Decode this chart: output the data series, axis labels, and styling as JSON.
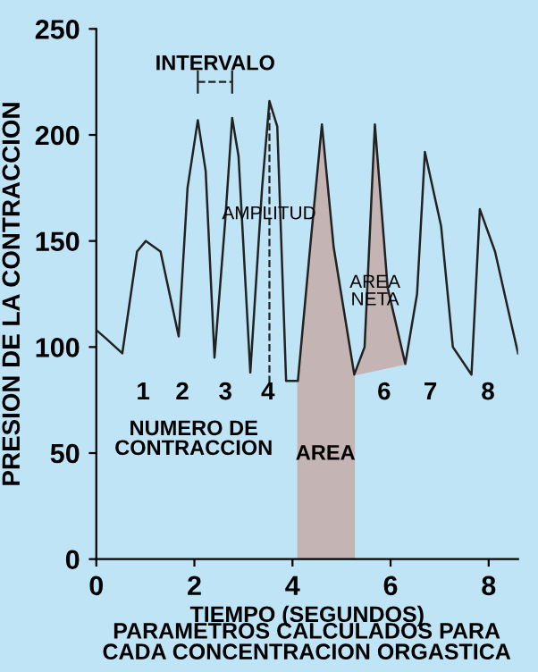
{
  "chart_data": {
    "type": "line",
    "xlabel": "TIEMPO (SEGUNDOS)",
    "ylabel": "PRESION DE LA CONTRACCION",
    "xlim": [
      0,
      8.6
    ],
    "ylim": [
      0,
      250
    ],
    "xticks": [
      0,
      2,
      4,
      6,
      8
    ],
    "yticks": [
      0,
      50,
      100,
      150,
      200,
      250
    ],
    "grid": false,
    "legend": false,
    "series": [
      {
        "type": "area",
        "color": "#c4b4b4",
        "x": [
          4.11,
          4.11,
          4.36,
          4.6,
          4.84,
          5.26,
          5.26
        ],
        "values": [
          0,
          84,
          147,
          205,
          147,
          87,
          0
        ]
      },
      {
        "type": "area",
        "color": "#c4b4b4",
        "x": [
          5.3,
          5.47,
          5.68,
          5.94,
          6.3
        ],
        "values": [
          87,
          100,
          205,
          128,
          92
        ]
      },
      {
        "color": "#222222",
        "x": [
          0,
          0.2,
          0.53,
          0.83,
          1.01,
          1.31,
          1.68,
          1.86,
          2.07,
          2.23,
          2.41,
          2.63,
          2.77,
          2.9,
          3.14,
          3.38,
          3.53,
          3.69,
          3.87,
          4.11,
          4.36,
          4.6,
          4.84,
          5.26,
          5.47,
          5.68,
          5.94,
          6.3,
          6.54,
          6.7,
          7.03,
          7.27,
          7.65,
          7.82,
          8.13,
          8.49,
          8.6
        ],
        "values": [
          108,
          104,
          97,
          145,
          150,
          145,
          105,
          175,
          207,
          183,
          95,
          160,
          208,
          190,
          88,
          175,
          216,
          204,
          84,
          84,
          147,
          205,
          147,
          87,
          100,
          205,
          128,
          92,
          125,
          192,
          157,
          100,
          87,
          165,
          145,
          108,
          97
        ]
      },
      {
        "type": "line",
        "color": "#222222",
        "line_style": "dashed",
        "x": [
          3.53,
          3.53
        ],
        "values": [
          83,
          216
        ]
      },
      {
        "type": "line",
        "color": "#222222",
        "line_style": "dashed",
        "x": [
          2.07,
          2.77
        ],
        "values": [
          225,
          225
        ]
      }
    ],
    "annotations": [
      "INTERVALO",
      "AMPLITUD",
      "AREA\nNETA",
      "AREA",
      "NUMERO DE\nCONTRACCION",
      "1",
      "2",
      "3",
      "4",
      "6",
      "7",
      "8",
      "PARAMETROS CALCULADOS PARA\nCADA CONCENTRACION ORGASTICA"
    ]
  }
}
